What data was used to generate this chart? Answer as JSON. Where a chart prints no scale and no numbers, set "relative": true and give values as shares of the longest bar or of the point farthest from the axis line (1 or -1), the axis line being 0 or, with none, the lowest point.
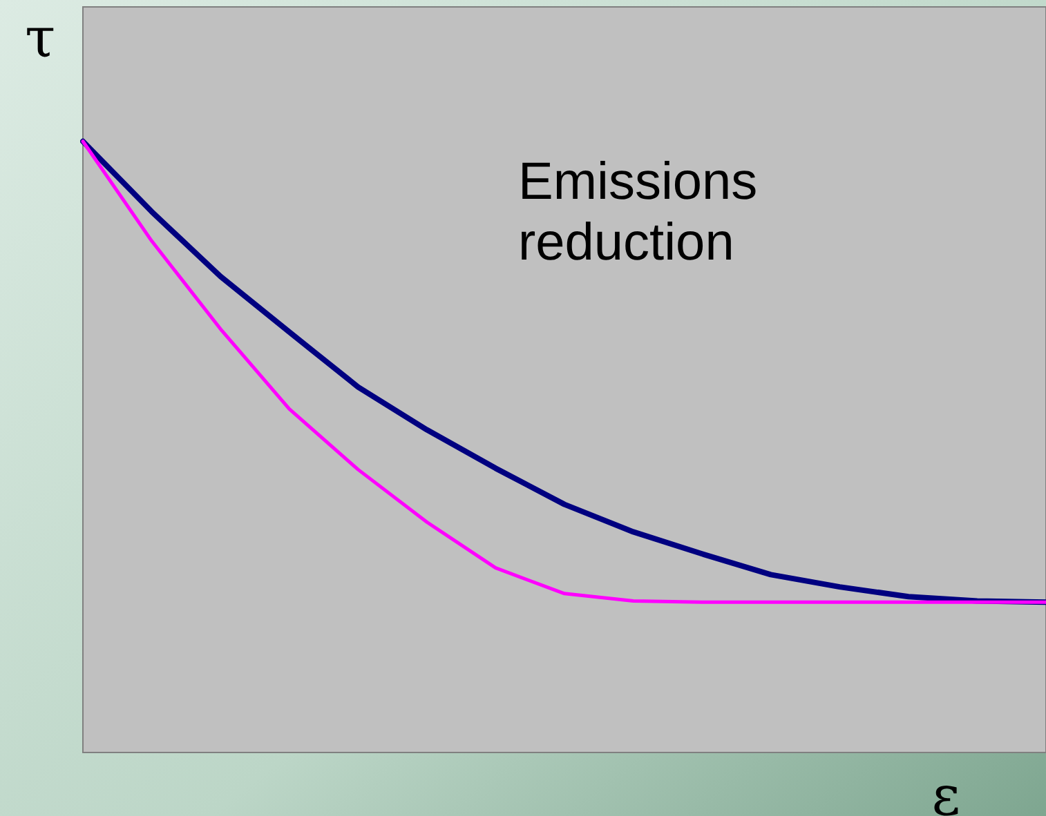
{
  "chart_data": {
    "type": "line",
    "relative": true,
    "xlabel": "ε",
    "ylabel": "τ",
    "annotations": [
      "Emissions reduction"
    ],
    "categories": [
      null,
      null,
      null,
      null,
      null,
      null,
      null,
      null,
      null,
      null,
      null,
      null,
      null,
      null,
      null
    ],
    "series": [
      {
        "color": "#000080",
        "values": [
          1.0,
          0.885,
          0.779,
          0.688,
          0.598,
          0.528,
          0.465,
          0.406,
          0.361,
          0.325,
          0.291,
          0.271,
          0.255,
          0.248,
          0.246
        ]
      },
      {
        "color": "#ff00ff",
        "values": [
          1.0,
          0.837,
          0.693,
          0.562,
          0.463,
          0.377,
          0.302,
          0.26,
          0.248,
          0.246,
          0.246,
          0.246,
          0.246,
          0.246,
          0.246
        ]
      }
    ],
    "tick_labels": false,
    "marker": "none",
    "line_style": "solid"
  }
}
